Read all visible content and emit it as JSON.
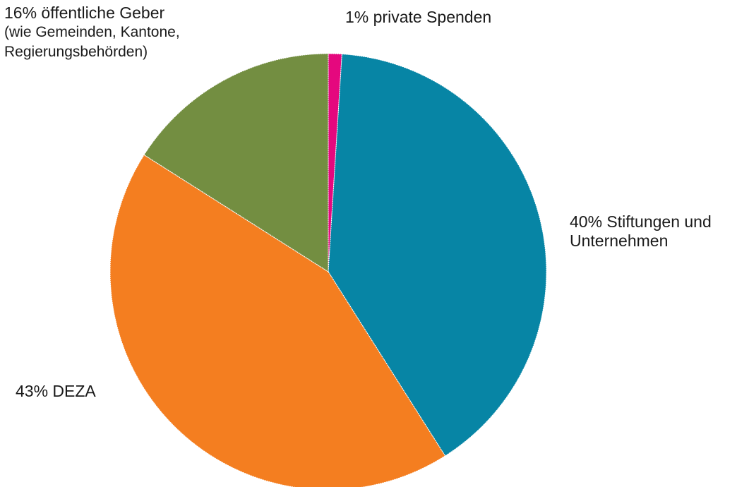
{
  "chart_data": {
    "type": "pie",
    "slices": [
      {
        "name": "private Spenden",
        "value": 1,
        "color": "#e5087e",
        "label_lines": [
          "1% private Spenden"
        ]
      },
      {
        "name": "Stiftungen und Unternehmen",
        "value": 40,
        "color": "#0785a5",
        "label_lines": [
          "40% Stiftungen und",
          "Unternehmen"
        ]
      },
      {
        "name": "DEZA",
        "value": 43,
        "color": "#f47e20",
        "label_lines": [
          "43% DEZA"
        ]
      },
      {
        "name": "öffentliche Geber",
        "value": 16,
        "color": "#738e41",
        "label_lines": [
          "16% öffentliche Geber",
          "(wie Gemeinden, Kantone,",
          "Regierungsbehörden)"
        ]
      }
    ],
    "start": "top",
    "direction": "clockwise",
    "legend": "none"
  }
}
